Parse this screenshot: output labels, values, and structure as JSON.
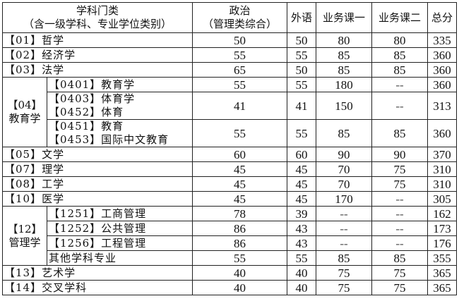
{
  "headers": {
    "subject": [
      "学科门类",
      "（含一级学科、专业学位类别）"
    ],
    "politics": [
      "政治",
      "（管理类综合）"
    ],
    "foreign": "外语",
    "course1": "业务课一",
    "course2": "业务课二",
    "total": "总分"
  },
  "rows": [
    {
      "name": "【01】哲学",
      "v": [
        "50",
        "50",
        "80",
        "80",
        "335"
      ]
    },
    {
      "name": "【02】经济学",
      "v": [
        "55",
        "55",
        "85",
        "85",
        "360"
      ]
    },
    {
      "name": "【03】法学",
      "v": [
        "65",
        "50",
        "85",
        "85",
        "360"
      ]
    },
    {
      "group": [
        "【04】",
        "教育学"
      ],
      "groupSpan": 3,
      "sub": [
        "【0401】教育学"
      ],
      "v": [
        "55",
        "55",
        "180",
        "--",
        "360"
      ]
    },
    {
      "sub": [
        "【0403】体育学",
        "【0452】体育"
      ],
      "v": [
        "41",
        "41",
        "150",
        "--",
        "313"
      ]
    },
    {
      "sub": [
        "【0451】教育",
        "【0453】国际中文教育"
      ],
      "v": [
        "55",
        "55",
        "85",
        "85",
        "360"
      ]
    },
    {
      "name": "【05】文学",
      "v": [
        "60",
        "60",
        "90",
        "90",
        "370"
      ]
    },
    {
      "name": "【07】理学",
      "v": [
        "45",
        "45",
        "70",
        "75",
        "310"
      ]
    },
    {
      "name": "【08】工学",
      "v": [
        "45",
        "45",
        "70",
        "75",
        "310"
      ]
    },
    {
      "name": "【10】医学",
      "v": [
        "45",
        "45",
        "170",
        "--",
        "305"
      ]
    },
    {
      "group": [
        "【12】",
        "管理学"
      ],
      "groupSpan": 4,
      "sub": [
        "【1251】工商管理"
      ],
      "v": [
        "78",
        "39",
        "--",
        "--",
        "162"
      ]
    },
    {
      "sub": [
        "【1252】公共管理"
      ],
      "v": [
        "86",
        "43",
        "--",
        "--",
        "173"
      ]
    },
    {
      "sub": [
        "【1256】工程管理"
      ],
      "v": [
        "86",
        "43",
        "--",
        "--",
        "176"
      ]
    },
    {
      "sub": [
        "其他学科专业"
      ],
      "v": [
        "55",
        "55",
        "85",
        "85",
        "355"
      ]
    },
    {
      "name": "【13】艺术学",
      "v": [
        "40",
        "40",
        "75",
        "75",
        "365"
      ]
    },
    {
      "name": "【14】交叉学科",
      "v": [
        "40",
        "40",
        "75",
        "75",
        "365"
      ]
    }
  ]
}
